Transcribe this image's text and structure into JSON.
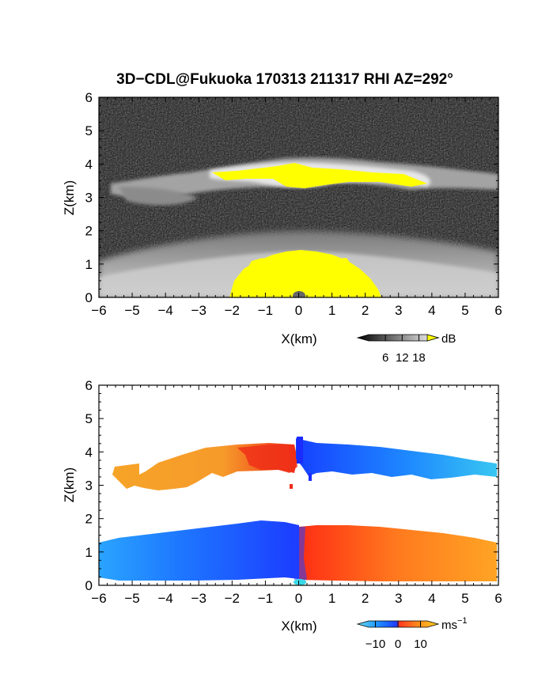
{
  "figure": {
    "title": "3D−CDL@Fukuoka 170313 211317 RHI AZ=292°"
  },
  "chart_data": [
    {
      "type": "heatmap",
      "name": "Echo intensity (RHI)",
      "xlabel": "X(km)",
      "ylabel": "Z(km)",
      "xlim": [
        -6,
        6
      ],
      "ylim": [
        0,
        6
      ],
      "xticks": [
        "−6",
        "−5",
        "−4",
        "−3",
        "−2",
        "−1",
        "0",
        "1",
        "2",
        "3",
        "4",
        "5",
        "6"
      ],
      "yticks": [
        "0",
        "1",
        "2",
        "3",
        "4",
        "5",
        "6"
      ],
      "colorbar": {
        "unit": "dB",
        "ticks": [
          "6",
          "12",
          "18"
        ],
        "range": [
          0,
          21
        ],
        "colormap": "grayscale (black→white), yellow above max"
      },
      "regions": [
        {
          "label": "cloud layer",
          "x_range": [
            -5.8,
            6
          ],
          "z_range": [
            2.8,
            4.2
          ]
        },
        {
          "label": "boundary layer",
          "x_range": [
            -6,
            6
          ],
          "z_range": [
            0,
            1.5
          ]
        },
        {
          "label": "saturated (>18 dB)",
          "x_range": [
            -2.2,
            2.2
          ],
          "z_range": [
            0,
            1.3
          ]
        }
      ],
      "grid": false
    },
    {
      "type": "heatmap",
      "name": "Doppler velocity (RHI)",
      "xlabel": "X(km)",
      "ylabel": "Z(km)",
      "xlim": [
        -6,
        6
      ],
      "ylim": [
        0,
        6
      ],
      "xticks": [
        "−6",
        "−5",
        "−4",
        "−3",
        "−2",
        "−1",
        "0",
        "1",
        "2",
        "3",
        "4",
        "5",
        "6"
      ],
      "yticks": [
        "0",
        "1",
        "2",
        "3",
        "4",
        "5",
        "6"
      ],
      "colorbar": {
        "unit": "ms⁻¹",
        "unit_main": "ms",
        "unit_sup": "−1",
        "ticks": [
          "−10",
          "0",
          "10"
        ],
        "range": [
          -13,
          13
        ],
        "colormap": "cyan→blue (negative) / red→yellow (positive)"
      },
      "regions": [
        {
          "label": "upper layer, X<0",
          "x_range": [
            -5.8,
            0
          ],
          "z_range": [
            2.8,
            4.2
          ],
          "velocity_ms": 8
        },
        {
          "label": "upper layer, X>0",
          "x_range": [
            0,
            6
          ],
          "z_range": [
            3.2,
            4.3
          ],
          "velocity_ms": -8
        },
        {
          "label": "lower layer, X<0",
          "x_range": [
            -6,
            0
          ],
          "z_range": [
            0,
            1.8
          ],
          "velocity_ms": -9
        },
        {
          "label": "lower layer, X>0",
          "x_range": [
            0,
            6
          ],
          "z_range": [
            0,
            1.7
          ],
          "velocity_ms": 7
        }
      ],
      "grid": false
    }
  ]
}
